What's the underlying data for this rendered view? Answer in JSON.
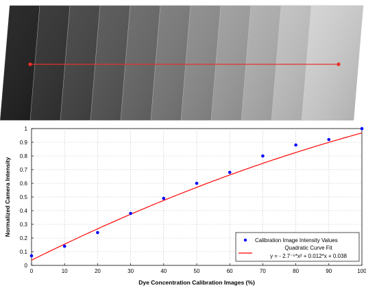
{
  "image_stack": {
    "frame_count": 11,
    "marker_color": "#e8312a"
  },
  "chart_data": {
    "type": "scatter",
    "xlabel": "Dye Concentration Calibration Images  (%)",
    "ylabel": "Normalized Camera Intensity",
    "xlim": [
      0,
      100
    ],
    "ylim": [
      0,
      1
    ],
    "xticks": [
      0,
      10,
      20,
      30,
      40,
      50,
      60,
      70,
      80,
      90,
      100
    ],
    "yticks": [
      0,
      0.1,
      0.2,
      0.3,
      0.4,
      0.5,
      0.6,
      0.7,
      0.8,
      0.9,
      1
    ],
    "grid": true,
    "legend_position": "bottom-right",
    "series": [
      {
        "name": "Calibration Image Intensity Values",
        "kind": "points",
        "color": "#0000ff",
        "x": [
          0,
          10,
          20,
          30,
          40,
          50,
          60,
          70,
          80,
          90,
          100
        ],
        "y": [
          0.07,
          0.14,
          0.24,
          0.38,
          0.49,
          0.6,
          0.68,
          0.8,
          0.88,
          0.92,
          1.0
        ]
      },
      {
        "name": "Quadratic Curve Fit",
        "kind": "line",
        "color": "#ff0000",
        "equation_label": "y = - 2.7⁻⁵*x² + 0.012*x + 0.038",
        "coefficients": {
          "a": -2.7e-05,
          "b": 0.012,
          "c": 0.038
        }
      }
    ]
  }
}
